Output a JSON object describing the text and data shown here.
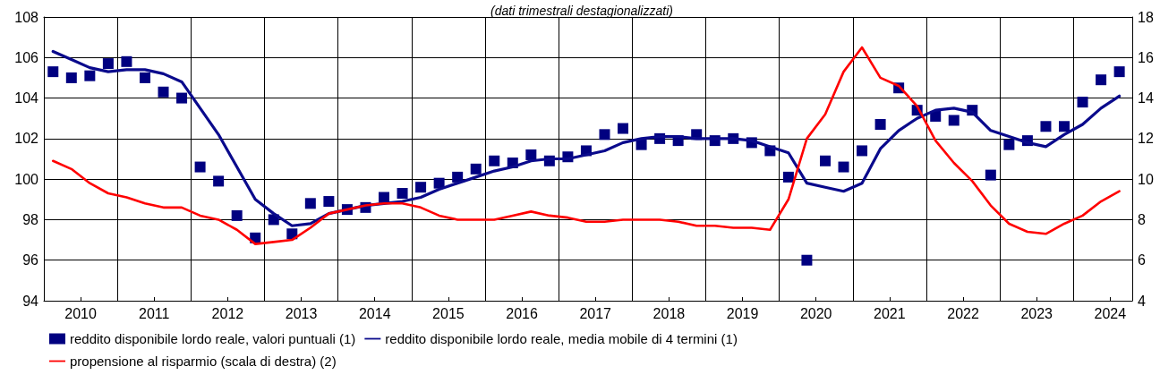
{
  "chart_data": {
    "type": "line",
    "subtitle": "(dati trimestrali destagionalizzati)",
    "x": [
      2010.125,
      2010.375,
      2010.625,
      2010.875,
      2011.125,
      2011.375,
      2011.625,
      2011.875,
      2012.125,
      2012.375,
      2012.625,
      2012.875,
      2013.125,
      2013.375,
      2013.625,
      2013.875,
      2014.125,
      2014.375,
      2014.625,
      2014.875,
      2015.125,
      2015.375,
      2015.625,
      2015.875,
      2016.125,
      2016.375,
      2016.625,
      2016.875,
      2017.125,
      2017.375,
      2017.625,
      2017.875,
      2018.125,
      2018.375,
      2018.625,
      2018.875,
      2019.125,
      2019.375,
      2019.625,
      2019.875,
      2020.125,
      2020.375,
      2020.625,
      2020.875,
      2021.125,
      2021.375,
      2021.625,
      2021.875,
      2022.125,
      2022.375,
      2022.625,
      2022.875,
      2023.125,
      2023.375,
      2023.625,
      2023.875,
      2024.125,
      2024.375,
      2024.625
    ],
    "series": [
      {
        "name": "reddito disponibile lordo reale, valori puntuali (1)",
        "type": "scatter",
        "marker": "square",
        "color": "#000080",
        "values": [
          105.3,
          105.0,
          105.1,
          105.7,
          105.8,
          105.0,
          104.3,
          104.0,
          100.6,
          99.9,
          98.2,
          97.1,
          98.0,
          97.3,
          98.8,
          98.9,
          98.5,
          98.6,
          99.1,
          99.3,
          99.6,
          99.8,
          100.1,
          100.5,
          100.9,
          100.8,
          101.2,
          100.9,
          101.1,
          101.4,
          102.2,
          102.5,
          101.7,
          102.0,
          101.9,
          102.2,
          101.9,
          102.0,
          101.8,
          101.4,
          100.1,
          96.0,
          100.9,
          100.6,
          101.4,
          102.7,
          104.5,
          103.4,
          103.1,
          102.9,
          103.4,
          100.2,
          101.7,
          101.9,
          102.6,
          102.6,
          103.8,
          104.9,
          105.3
        ]
      },
      {
        "name": "reddito disponibile lordo reale, media mobile di 4 termini (1)",
        "marker": "none",
        "color": "#0a0a8c",
        "values": [
          106.3,
          105.9,
          105.5,
          105.3,
          105.4,
          105.4,
          105.2,
          104.8,
          103.5,
          102.2,
          100.6,
          99.0,
          98.3,
          97.7,
          97.8,
          98.3,
          98.5,
          98.7,
          98.8,
          98.9,
          99.1,
          99.5,
          99.8,
          100.1,
          100.4,
          100.6,
          100.9,
          101.0,
          101.0,
          101.2,
          101.4,
          101.8,
          102.0,
          102.1,
          102.1,
          102.0,
          102.0,
          102.0,
          101.9,
          101.6,
          101.3,
          99.8,
          99.6,
          99.4,
          99.8,
          101.5,
          102.4,
          103.0,
          103.4,
          103.5,
          103.3,
          102.4,
          102.1,
          101.8,
          101.6,
          102.2,
          102.7,
          103.5,
          104.1
        ]
      },
      {
        "name": "propensione al risparmio (scala di destra) (2)",
        "marker": "none",
        "axis": "y2",
        "color": "#ff0000",
        "values": [
          10.9,
          10.5,
          9.8,
          9.3,
          9.1,
          8.8,
          8.6,
          8.6,
          8.2,
          8.0,
          7.5,
          6.8,
          6.9,
          7.0,
          7.6,
          8.3,
          8.5,
          8.7,
          8.8,
          8.8,
          8.6,
          8.2,
          8.0,
          8.0,
          8.0,
          8.2,
          8.4,
          8.2,
          8.1,
          7.9,
          7.9,
          8.0,
          8.0,
          8.0,
          7.9,
          7.7,
          7.7,
          7.6,
          7.6,
          7.5,
          9.0,
          12.0,
          13.2,
          15.3,
          16.5,
          15.0,
          14.6,
          13.6,
          11.9,
          10.8,
          9.9,
          8.7,
          7.8,
          7.4,
          7.3,
          7.8,
          8.2,
          8.9,
          9.4
        ]
      }
    ],
    "xlim": [
      2010,
      2024.8
    ],
    "xticks": [
      {
        "value": 2010.5,
        "label": "2010"
      },
      {
        "value": 2011.5,
        "label": "2011"
      },
      {
        "value": 2012.5,
        "label": "2012"
      },
      {
        "value": 2013.5,
        "label": "2013"
      },
      {
        "value": 2014.5,
        "label": "2014"
      },
      {
        "value": 2015.5,
        "label": "2015"
      },
      {
        "value": 2016.5,
        "label": "2016"
      },
      {
        "value": 2017.5,
        "label": "2017"
      },
      {
        "value": 2018.5,
        "label": "2018"
      },
      {
        "value": 2019.5,
        "label": "2019"
      },
      {
        "value": 2020.5,
        "label": "2020"
      },
      {
        "value": 2021.5,
        "label": "2021"
      },
      {
        "value": 2022.5,
        "label": "2022"
      },
      {
        "value": 2023.5,
        "label": "2023"
      },
      {
        "value": 2024.5,
        "label": "2024"
      },
      {
        "value": 2011,
        "label": null
      },
      {
        "value": 2012,
        "label": null
      },
      {
        "value": 2013,
        "label": null
      },
      {
        "value": 2014,
        "label": null
      },
      {
        "value": 2015,
        "label": null
      },
      {
        "value": 2016,
        "label": null
      },
      {
        "value": 2017,
        "label": null
      },
      {
        "value": 2018,
        "label": null
      },
      {
        "value": 2019,
        "label": null
      },
      {
        "value": 2020,
        "label": null
      },
      {
        "value": 2021,
        "label": null
      },
      {
        "value": 2022,
        "label": null
      },
      {
        "value": 2023,
        "label": null
      },
      {
        "value": 2024,
        "label": null
      }
    ],
    "ylim": [
      94,
      108
    ],
    "yticks": [
      94,
      96,
      98,
      100,
      102,
      104,
      106,
      108
    ],
    "y2lim": [
      4,
      18
    ],
    "y2ticks": [
      4,
      6,
      8,
      10,
      12,
      14,
      16,
      18
    ],
    "grid": true,
    "legend": "bottom left"
  }
}
